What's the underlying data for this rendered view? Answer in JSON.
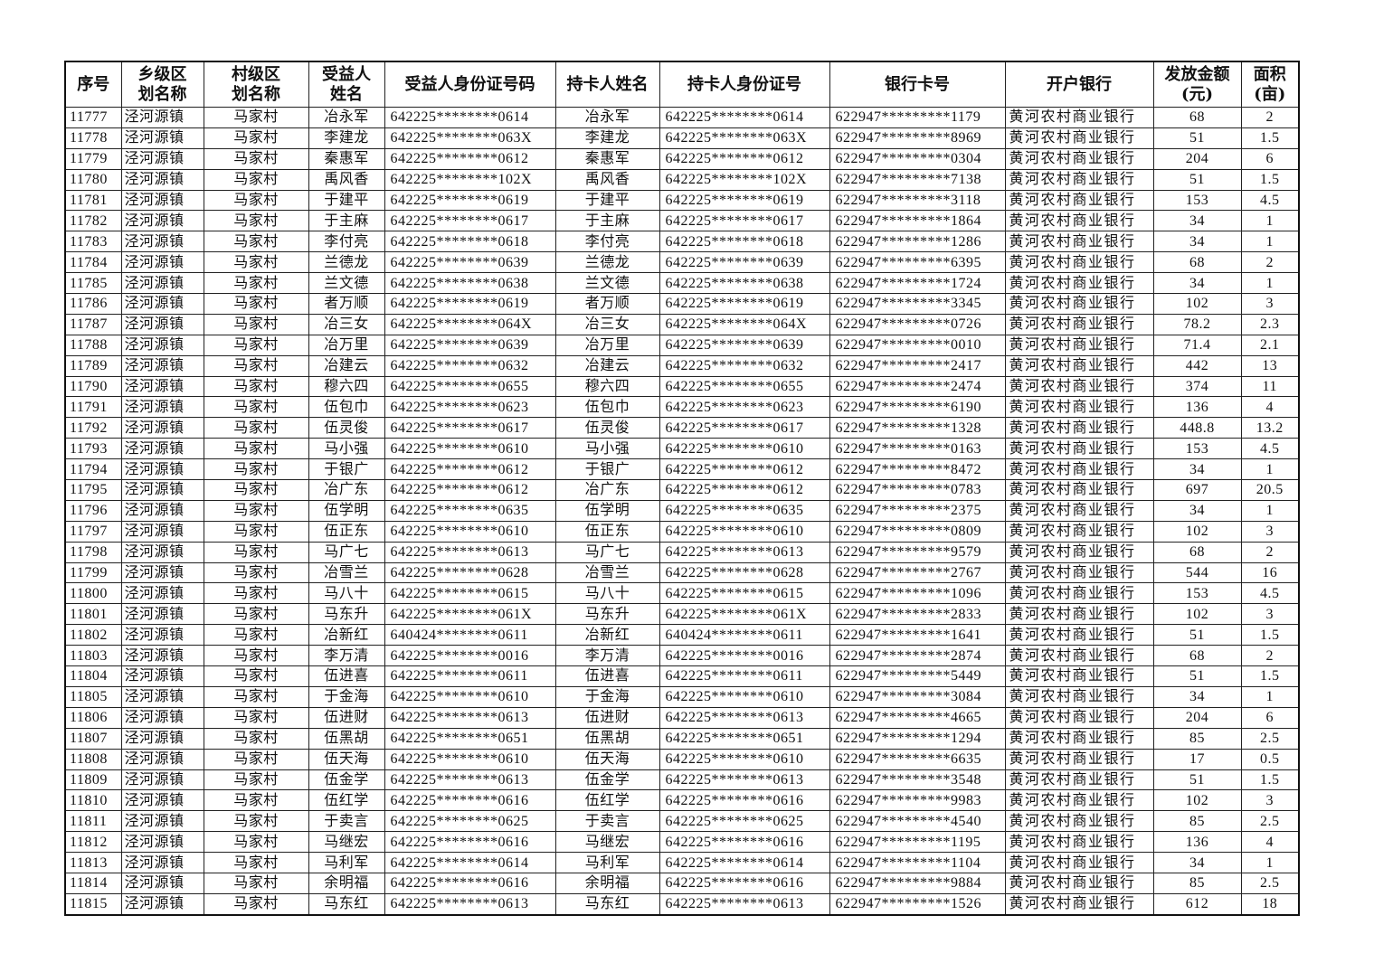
{
  "table": {
    "headers": [
      "序号",
      "乡级区\n划名称",
      "村级区\n划名称",
      "受益人\n姓名",
      "受益人身份证号码",
      "持卡人姓名",
      "持卡人身份证号",
      "银行卡号",
      "开户银行",
      "发放金额\n(元)",
      "面积\n(亩)"
    ],
    "rows": [
      [
        "11777",
        "泾河源镇",
        "马家村",
        "冶永军",
        "642225********0614",
        "冶永军",
        "642225********0614",
        "622947*********1179",
        "黄河农村商业银行",
        "68",
        "2"
      ],
      [
        "11778",
        "泾河源镇",
        "马家村",
        "李建龙",
        "642225********063X",
        "李建龙",
        "642225********063X",
        "622947*********8969",
        "黄河农村商业银行",
        "51",
        "1.5"
      ],
      [
        "11779",
        "泾河源镇",
        "马家村",
        "秦惠军",
        "642225********0612",
        "秦惠军",
        "642225********0612",
        "622947*********0304",
        "黄河农村商业银行",
        "204",
        "6"
      ],
      [
        "11780",
        "泾河源镇",
        "马家村",
        "禹风香",
        "642225********102X",
        "禹风香",
        "642225********102X",
        "622947*********7138",
        "黄河农村商业银行",
        "51",
        "1.5"
      ],
      [
        "11781",
        "泾河源镇",
        "马家村",
        "于建平",
        "642225********0619",
        "于建平",
        "642225********0619",
        "622947*********3118",
        "黄河农村商业银行",
        "153",
        "4.5"
      ],
      [
        "11782",
        "泾河源镇",
        "马家村",
        "于主麻",
        "642225********0617",
        "于主麻",
        "642225********0617",
        "622947*********1864",
        "黄河农村商业银行",
        "34",
        "1"
      ],
      [
        "11783",
        "泾河源镇",
        "马家村",
        "李付亮",
        "642225********0618",
        "李付亮",
        "642225********0618",
        "622947*********1286",
        "黄河农村商业银行",
        "34",
        "1"
      ],
      [
        "11784",
        "泾河源镇",
        "马家村",
        "兰德龙",
        "642225********0639",
        "兰德龙",
        "642225********0639",
        "622947*********6395",
        "黄河农村商业银行",
        "68",
        "2"
      ],
      [
        "11785",
        "泾河源镇",
        "马家村",
        "兰文德",
        "642225********0638",
        "兰文德",
        "642225********0638",
        "622947*********1724",
        "黄河农村商业银行",
        "34",
        "1"
      ],
      [
        "11786",
        "泾河源镇",
        "马家村",
        "者万顺",
        "642225********0619",
        "者万顺",
        "642225********0619",
        "622947*********3345",
        "黄河农村商业银行",
        "102",
        "3"
      ],
      [
        "11787",
        "泾河源镇",
        "马家村",
        "冶三女",
        "642225********064X",
        "冶三女",
        "642225********064X",
        "622947*********0726",
        "黄河农村商业银行",
        "78.2",
        "2.3"
      ],
      [
        "11788",
        "泾河源镇",
        "马家村",
        "冶万里",
        "642225********0639",
        "冶万里",
        "642225********0639",
        "622947*********0010",
        "黄河农村商业银行",
        "71.4",
        "2.1"
      ],
      [
        "11789",
        "泾河源镇",
        "马家村",
        "冶建云",
        "642225********0632",
        "冶建云",
        "642225********0632",
        "622947*********2417",
        "黄河农村商业银行",
        "442",
        "13"
      ],
      [
        "11790",
        "泾河源镇",
        "马家村",
        "穆六四",
        "642225********0655",
        "穆六四",
        "642225********0655",
        "622947*********2474",
        "黄河农村商业银行",
        "374",
        "11"
      ],
      [
        "11791",
        "泾河源镇",
        "马家村",
        "伍包巾",
        "642225********0623",
        "伍包巾",
        "642225********0623",
        "622947*********6190",
        "黄河农村商业银行",
        "136",
        "4"
      ],
      [
        "11792",
        "泾河源镇",
        "马家村",
        "伍灵俊",
        "642225********0617",
        "伍灵俊",
        "642225********0617",
        "622947*********1328",
        "黄河农村商业银行",
        "448.8",
        "13.2"
      ],
      [
        "11793",
        "泾河源镇",
        "马家村",
        "马小强",
        "642225********0610",
        "马小强",
        "642225********0610",
        "622947*********0163",
        "黄河农村商业银行",
        "153",
        "4.5"
      ],
      [
        "11794",
        "泾河源镇",
        "马家村",
        "于银广",
        "642225********0612",
        "于银广",
        "642225********0612",
        "622947*********8472",
        "黄河农村商业银行",
        "34",
        "1"
      ],
      [
        "11795",
        "泾河源镇",
        "马家村",
        "冶广东",
        "642225********0612",
        "冶广东",
        "642225********0612",
        "622947*********0783",
        "黄河农村商业银行",
        "697",
        "20.5"
      ],
      [
        "11796",
        "泾河源镇",
        "马家村",
        "伍学明",
        "642225********0635",
        "伍学明",
        "642225********0635",
        "622947*********2375",
        "黄河农村商业银行",
        "34",
        "1"
      ],
      [
        "11797",
        "泾河源镇",
        "马家村",
        "伍正东",
        "642225********0610",
        "伍正东",
        "642225********0610",
        "622947*********0809",
        "黄河农村商业银行",
        "102",
        "3"
      ],
      [
        "11798",
        "泾河源镇",
        "马家村",
        "马广七",
        "642225********0613",
        "马广七",
        "642225********0613",
        "622947*********9579",
        "黄河农村商业银行",
        "68",
        "2"
      ],
      [
        "11799",
        "泾河源镇",
        "马家村",
        "冶雪兰",
        "642225********0628",
        "冶雪兰",
        "642225********0628",
        "622947*********2767",
        "黄河农村商业银行",
        "544",
        "16"
      ],
      [
        "11800",
        "泾河源镇",
        "马家村",
        "马八十",
        "642225********0615",
        "马八十",
        "642225********0615",
        "622947*********1096",
        "黄河农村商业银行",
        "153",
        "4.5"
      ],
      [
        "11801",
        "泾河源镇",
        "马家村",
        "马东升",
        "642225********061X",
        "马东升",
        "642225********061X",
        "622947*********2833",
        "黄河农村商业银行",
        "102",
        "3"
      ],
      [
        "11802",
        "泾河源镇",
        "马家村",
        "冶新红",
        "640424********0611",
        "冶新红",
        "640424********0611",
        "622947*********1641",
        "黄河农村商业银行",
        "51",
        "1.5"
      ],
      [
        "11803",
        "泾河源镇",
        "马家村",
        "李万清",
        "642225********0016",
        "李万清",
        "642225********0016",
        "622947*********2874",
        "黄河农村商业银行",
        "68",
        "2"
      ],
      [
        "11804",
        "泾河源镇",
        "马家村",
        "伍进喜",
        "642225********0611",
        "伍进喜",
        "642225********0611",
        "622947*********5449",
        "黄河农村商业银行",
        "51",
        "1.5"
      ],
      [
        "11805",
        "泾河源镇",
        "马家村",
        "于金海",
        "642225********0610",
        "于金海",
        "642225********0610",
        "622947*********3084",
        "黄河农村商业银行",
        "34",
        "1"
      ],
      [
        "11806",
        "泾河源镇",
        "马家村",
        "伍进财",
        "642225********0613",
        "伍进财",
        "642225********0613",
        "622947*********4665",
        "黄河农村商业银行",
        "204",
        "6"
      ],
      [
        "11807",
        "泾河源镇",
        "马家村",
        "伍黑胡",
        "642225********0651",
        "伍黑胡",
        "642225********0651",
        "622947*********1294",
        "黄河农村商业银行",
        "85",
        "2.5"
      ],
      [
        "11808",
        "泾河源镇",
        "马家村",
        "伍天海",
        "642225********0610",
        "伍天海",
        "642225********0610",
        "622947*********6635",
        "黄河农村商业银行",
        "17",
        "0.5"
      ],
      [
        "11809",
        "泾河源镇",
        "马家村",
        "伍金学",
        "642225********0613",
        "伍金学",
        "642225********0613",
        "622947*********3548",
        "黄河农村商业银行",
        "51",
        "1.5"
      ],
      [
        "11810",
        "泾河源镇",
        "马家村",
        "伍红学",
        "642225********0616",
        "伍红学",
        "642225********0616",
        "622947*********9983",
        "黄河农村商业银行",
        "102",
        "3"
      ],
      [
        "11811",
        "泾河源镇",
        "马家村",
        "于卖言",
        "642225********0625",
        "于卖言",
        "642225********0625",
        "622947*********4540",
        "黄河农村商业银行",
        "85",
        "2.5"
      ],
      [
        "11812",
        "泾河源镇",
        "马家村",
        "马继宏",
        "642225********0616",
        "马继宏",
        "642225********0616",
        "622947*********1195",
        "黄河农村商业银行",
        "136",
        "4"
      ],
      [
        "11813",
        "泾河源镇",
        "马家村",
        "马利军",
        "642225********0614",
        "马利军",
        "642225********0614",
        "622947*********1104",
        "黄河农村商业银行",
        "34",
        "1"
      ],
      [
        "11814",
        "泾河源镇",
        "马家村",
        "余明福",
        "642225********0616",
        "余明福",
        "642225********0616",
        "622947*********9884",
        "黄河农村商业银行",
        "85",
        "2.5"
      ],
      [
        "11815",
        "泾河源镇",
        "马家村",
        "马东红",
        "642225********0613",
        "马东红",
        "642225********0613",
        "622947*********1526",
        "黄河农村商业银行",
        "612",
        "18"
      ]
    ]
  }
}
